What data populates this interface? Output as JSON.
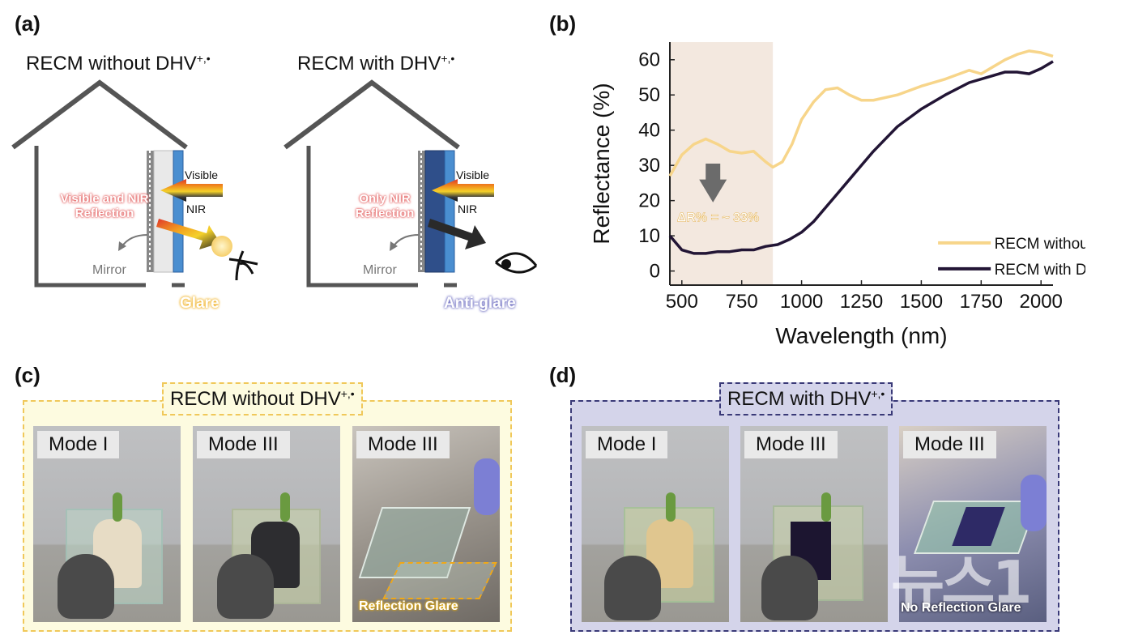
{
  "panel_a": {
    "label": "(a)",
    "left": {
      "title": "RECM without DHV",
      "title_sup": "+,•",
      "visible": "Visible",
      "nir": "NIR",
      "reflection": "Visible and NIR\nReflection",
      "mirror": "Mirror",
      "outcome": "Glare"
    },
    "right": {
      "title": "RECM with DHV",
      "title_sup": "+,•",
      "visible": "Visible",
      "nir": "NIR",
      "reflection": "Only NIR\nReflection",
      "mirror": "Mirror",
      "outcome": "Anti-glare"
    }
  },
  "panel_b": {
    "label": "(b)",
    "annotation": "ΔR% = ~ 33%"
  },
  "chart_data": {
    "type": "line",
    "title": "",
    "xlabel": "Wavelength (nm)",
    "ylabel": "Reflectance (%)",
    "xlim": [
      450,
      2050
    ],
    "ylim": [
      -4,
      65
    ],
    "xticks": [
      500,
      750,
      1000,
      1250,
      1500,
      1750,
      2000
    ],
    "yticks": [
      0,
      10,
      20,
      30,
      40,
      50,
      60
    ],
    "shaded_region": [
      450,
      880
    ],
    "legend_location": "lower-right",
    "series": [
      {
        "name": "RECM without DHV+,•",
        "color": "#f7d58a",
        "x": [
          450,
          500,
          550,
          600,
          650,
          700,
          750,
          800,
          850,
          880,
          920,
          960,
          1000,
          1050,
          1100,
          1150,
          1200,
          1250,
          1300,
          1400,
          1500,
          1600,
          1700,
          1750,
          1800,
          1850,
          1900,
          1950,
          2000,
          2050
        ],
        "y": [
          27,
          33,
          36,
          37.5,
          36,
          34,
          33.5,
          34,
          31,
          29.5,
          31,
          36,
          43,
          48,
          51.5,
          52,
          50,
          48.5,
          48.5,
          50,
          52.5,
          54.5,
          57,
          56,
          58,
          60,
          61.5,
          62.5,
          62,
          61
        ]
      },
      {
        "name": "RECM with DHV+,•",
        "color": "#221535",
        "x": [
          450,
          500,
          550,
          600,
          650,
          700,
          750,
          800,
          850,
          900,
          950,
          1000,
          1050,
          1100,
          1150,
          1200,
          1250,
          1300,
          1350,
          1400,
          1500,
          1600,
          1700,
          1800,
          1850,
          1900,
          1950,
          2000,
          2050
        ],
        "y": [
          10,
          6,
          5,
          5,
          5.5,
          5.5,
          6,
          6,
          7,
          7.5,
          9,
          11,
          14,
          18,
          22,
          26,
          30,
          34,
          37.5,
          41,
          46,
          50,
          53.5,
          55.5,
          56.5,
          56.5,
          56,
          57.5,
          59.5
        ]
      }
    ]
  },
  "panel_c": {
    "label": "(c)",
    "title": "RECM without DHV",
    "title_sup": "+,•",
    "photos": [
      {
        "mode": "Mode I"
      },
      {
        "mode": "Mode III"
      },
      {
        "mode": "Mode III",
        "caption": "Reflection Glare"
      }
    ]
  },
  "panel_d": {
    "label": "(d)",
    "title": "RECM with DHV",
    "title_sup": "+,•",
    "photos": [
      {
        "mode": "Mode I"
      },
      {
        "mode": "Mode III"
      },
      {
        "mode": "Mode III",
        "caption": "No Reflection Glare"
      }
    ]
  },
  "watermark": "뉴스1",
  "colors": {
    "glare_yellow": "#f3c35c",
    "antiglare_purple": "#8c8ccf",
    "panel_c_bg": "#fdfbe0",
    "panel_c_border": "#f0c85a",
    "panel_d_bg": "#d4d4ea",
    "panel_d_border": "#3a3a78",
    "shade": "#f3e8df"
  }
}
